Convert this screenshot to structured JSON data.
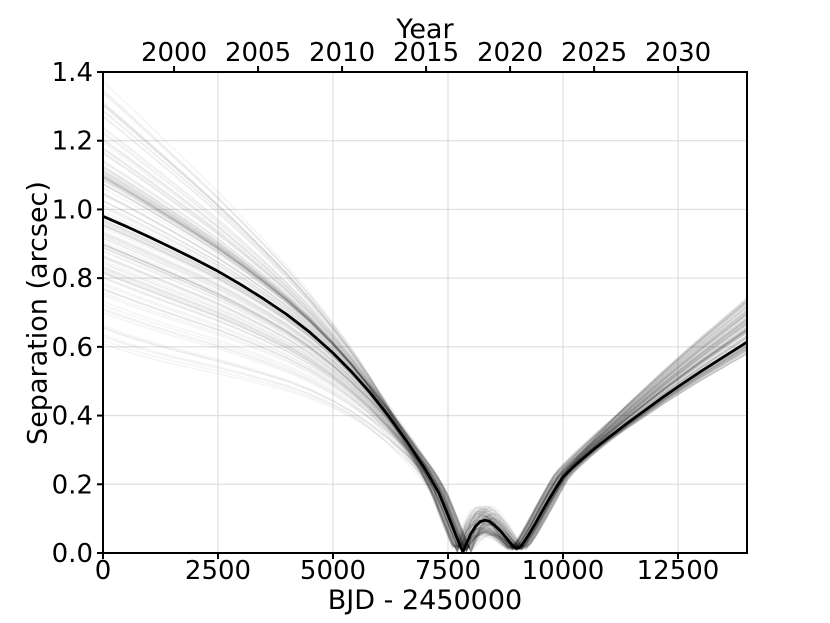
{
  "figure": {
    "background": "#ffffff"
  },
  "chart_data": {
    "type": "line",
    "title": "",
    "xlabel": "BJD - 2450000",
    "ylabel": "Separation (arcsec)",
    "top_axis_label": "Year",
    "xlim": [
      0,
      14000
    ],
    "ylim": [
      0.0,
      1.4
    ],
    "grid": {
      "on": true,
      "color": "#d9d9d9",
      "width": 1
    },
    "axes_color": "#000000",
    "x_ticks": [
      {
        "value": 0,
        "label": "0"
      },
      {
        "value": 2500,
        "label": "2500"
      },
      {
        "value": 5000,
        "label": "5000"
      },
      {
        "value": 7500,
        "label": "7500"
      },
      {
        "value": 10000,
        "label": "10000"
      },
      {
        "value": 12500,
        "label": "12500"
      }
    ],
    "y_ticks": [
      {
        "value": 0.0,
        "label": "0.0"
      },
      {
        "value": 0.2,
        "label": "0.2"
      },
      {
        "value": 0.4,
        "label": "0.4"
      },
      {
        "value": 0.6,
        "label": "0.6"
      },
      {
        "value": 0.8,
        "label": "0.8"
      },
      {
        "value": 1.0,
        "label": "1.0"
      },
      {
        "value": 1.2,
        "label": "1.2"
      },
      {
        "value": 1.4,
        "label": "1.4"
      }
    ],
    "top_ticks": [
      {
        "value": 1544.5,
        "label": "2000"
      },
      {
        "value": 3370.75,
        "label": "2005"
      },
      {
        "value": 5197.0,
        "label": "2010"
      },
      {
        "value": 7023.25,
        "label": "2015"
      },
      {
        "value": 8849.5,
        "label": "2020"
      },
      {
        "value": 10675.75,
        "label": "2025"
      },
      {
        "value": 12502.0,
        "label": "2030"
      }
    ],
    "series": [
      {
        "name": "best-fit-separation-curve",
        "color": "#000000",
        "width": 2.8,
        "points": [
          [
            0,
            0.98
          ],
          [
            500,
            0.951
          ],
          [
            1000,
            0.92
          ],
          [
            1500,
            0.888
          ],
          [
            2000,
            0.855
          ],
          [
            2500,
            0.82
          ],
          [
            3000,
            0.781
          ],
          [
            3500,
            0.739
          ],
          [
            4000,
            0.694
          ],
          [
            4500,
            0.642
          ],
          [
            5000,
            0.582
          ],
          [
            5400,
            0.528
          ],
          [
            5800,
            0.468
          ],
          [
            6200,
            0.4
          ],
          [
            6600,
            0.326
          ],
          [
            7000,
            0.245
          ],
          [
            7300,
            0.175
          ],
          [
            7500,
            0.11
          ],
          [
            7700,
            0.042
          ],
          [
            7826,
            0.003
          ],
          [
            7900,
            0.028
          ],
          [
            8000,
            0.057
          ],
          [
            8100,
            0.078
          ],
          [
            8200,
            0.091
          ],
          [
            8300,
            0.0955
          ],
          [
            8400,
            0.092
          ],
          [
            8500,
            0.082
          ],
          [
            8650,
            0.063
          ],
          [
            8800,
            0.038
          ],
          [
            8900,
            0.022
          ],
          [
            8980,
            0.0135
          ],
          [
            9060,
            0.016
          ],
          [
            9150,
            0.031
          ],
          [
            9250,
            0.052
          ],
          [
            9400,
            0.086
          ],
          [
            9550,
            0.122
          ],
          [
            9700,
            0.157
          ],
          [
            9850,
            0.19
          ],
          [
            10000,
            0.221
          ],
          [
            10200,
            0.247
          ],
          [
            10400,
            0.271
          ],
          [
            10700,
            0.305
          ],
          [
            11000,
            0.337
          ],
          [
            11400,
            0.378
          ],
          [
            11800,
            0.417
          ],
          [
            12200,
            0.456
          ],
          [
            12600,
            0.493
          ],
          [
            13000,
            0.529
          ],
          [
            13400,
            0.563
          ],
          [
            13800,
            0.597
          ],
          [
            14000,
            0.614
          ]
        ]
      }
    ],
    "ensemble": {
      "name": "posterior-orbit-draws",
      "count": 150,
      "seed": 11,
      "color": "rgba(0,0,0,0.045)",
      "width": 1.5,
      "start_separation_range_arcsec": [
        0.7,
        1.32
      ],
      "end_separation_range_arcsec": [
        0.58,
        0.75
      ],
      "time_shift_days": 190,
      "bump_zone_bjd": [
        7826,
        9060
      ],
      "converge_by_bjd": 7200,
      "diverge_after_bjd": 8980
    }
  }
}
